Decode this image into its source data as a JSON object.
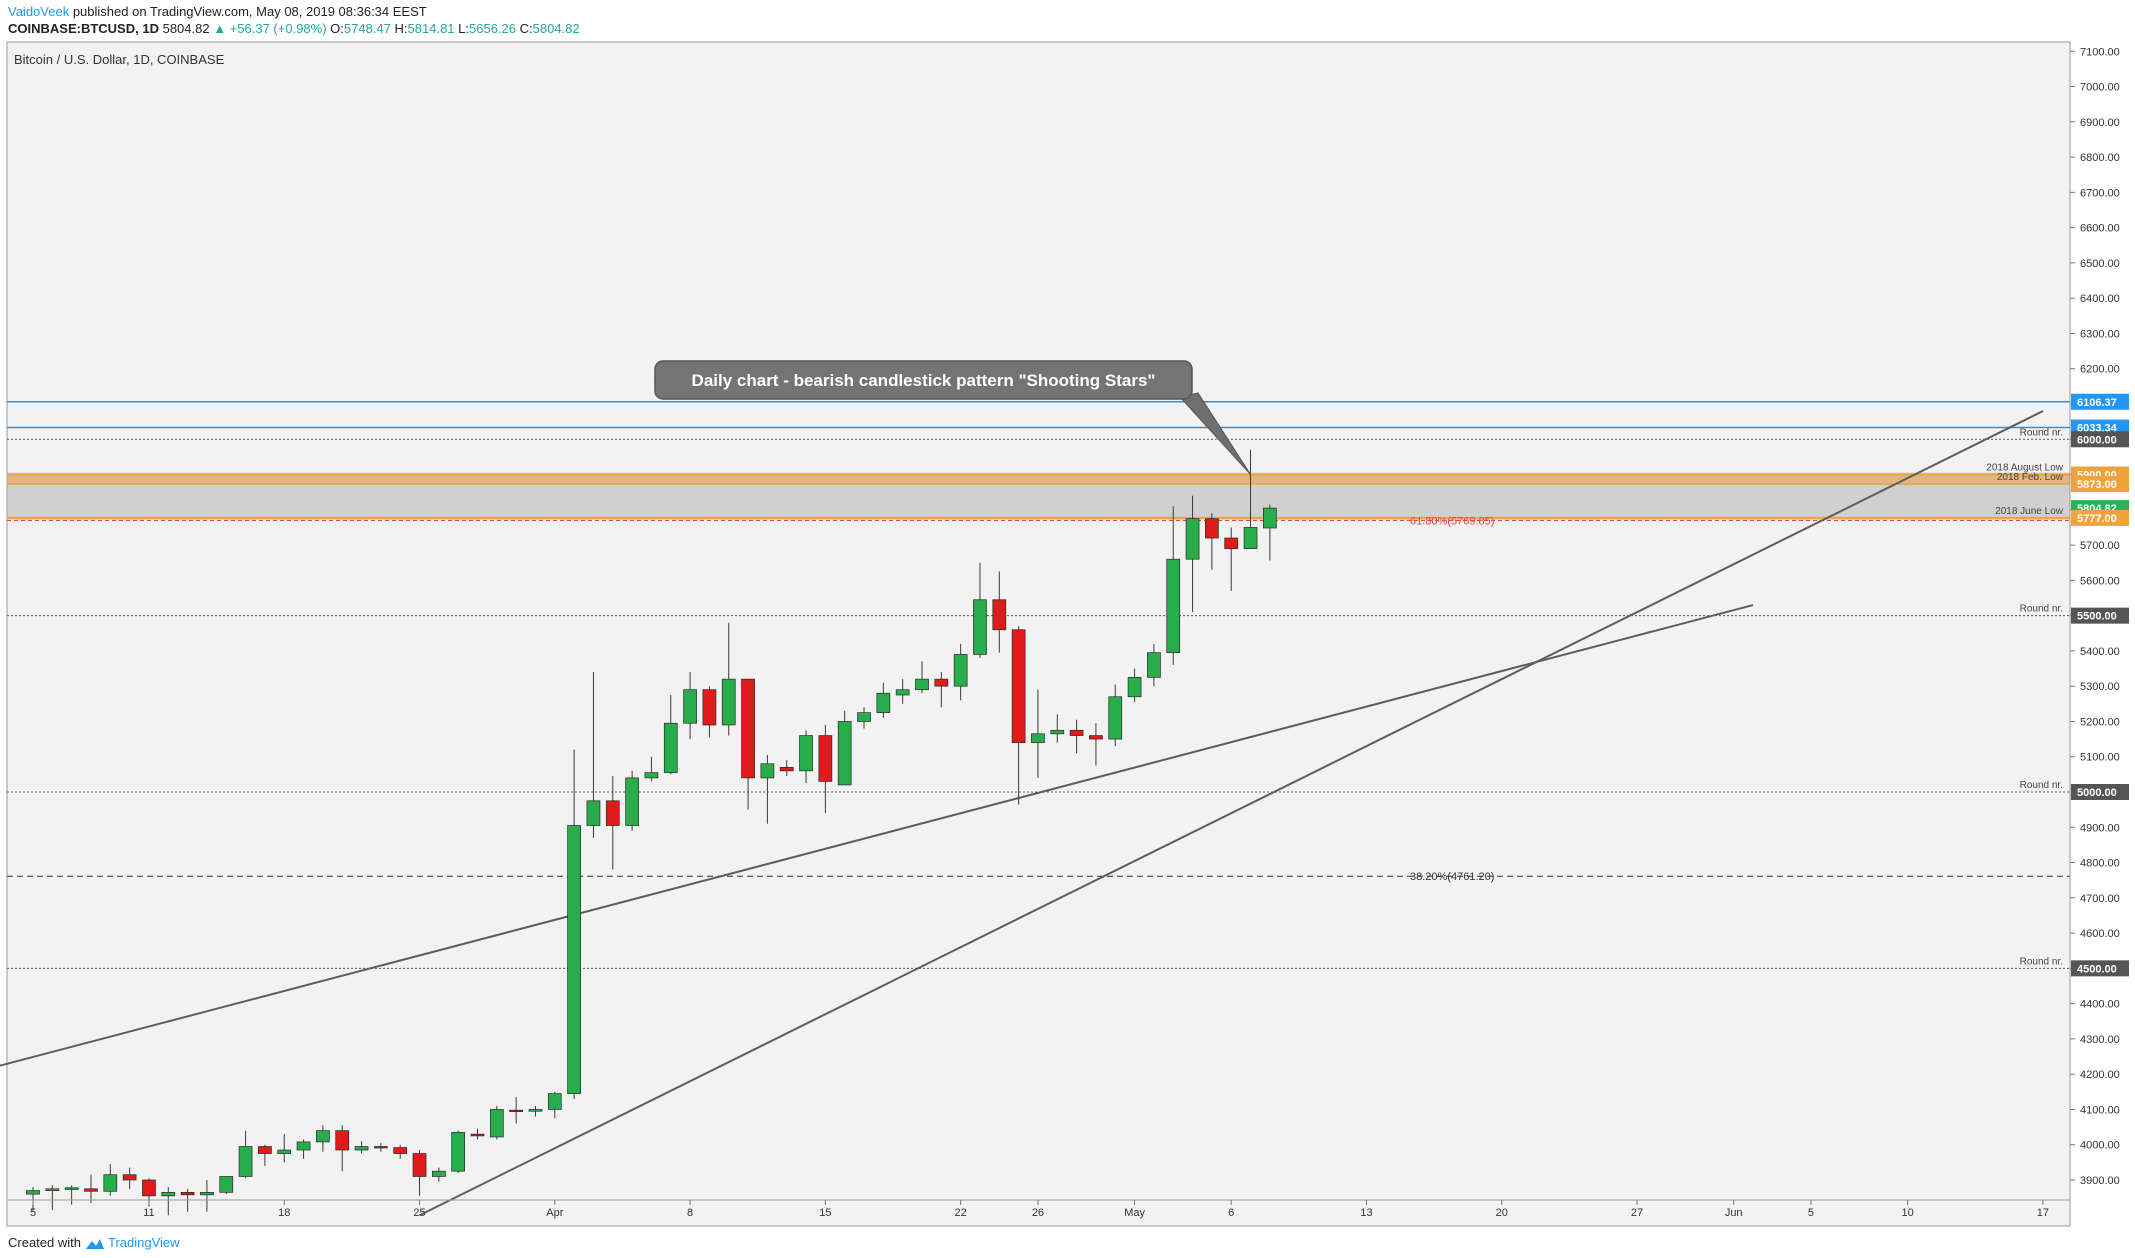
{
  "header": {
    "author": "VaidoVeek",
    "published_text": "published on TradingView.com, May 08, 2019 08:36:34 EEST",
    "symbol": "COINBASE:BTCUSD, 1D",
    "last": "5804.82",
    "change": "▲ +56.37 (+0.98%)",
    "o_label": "O:",
    "o_value": "5748.47",
    "h_label": "H:",
    "h_value": "5814.81",
    "l_label": "L:",
    "l_value": "5656.26",
    "c_label": "C:",
    "c_value": "5804.82"
  },
  "footer": {
    "created_with": "Created with",
    "brand": "TradingView",
    "logo_icon": "tradingview-logo-icon"
  },
  "colors": {
    "up": "#27ad4a",
    "down": "#e01b1b",
    "level_blue": "#2196f3",
    "fib_red": "#e8463c",
    "zone_orange": "#f0a33c",
    "label_dark": "#555555",
    "price_green": "#26b35a"
  },
  "chart_data": {
    "type": "candlestick",
    "title": "Bitcoin / U.S. Dollar, 1D, COINBASE",
    "ylim": [
      3800,
      7100
    ],
    "y_ticks": [
      "3900.00",
      "4000.00",
      "4100.00",
      "4200.00",
      "4300.00",
      "4400.00",
      "4500.00",
      "4600.00",
      "4700.00",
      "4800.00",
      "4900.00",
      "5000.00",
      "5100.00",
      "5200.00",
      "5300.00",
      "5400.00",
      "5500.00",
      "5600.00",
      "5700.00",
      "5800.00",
      "5900.00",
      "6000.00",
      "6100.00",
      "6200.00",
      "6300.00",
      "6400.00",
      "6500.00",
      "6600.00",
      "6700.00",
      "6800.00",
      "6900.00",
      "7000.00",
      "7100.00"
    ],
    "x_ticks": [
      {
        "label": "5",
        "date": "2019-03-05"
      },
      {
        "label": "11",
        "date": "2019-03-11"
      },
      {
        "label": "18",
        "date": "2019-03-18"
      },
      {
        "label": "25",
        "date": "2019-03-25"
      },
      {
        "label": "Apr",
        "date": "2019-04-01"
      },
      {
        "label": "8",
        "date": "2019-04-08"
      },
      {
        "label": "15",
        "date": "2019-04-15"
      },
      {
        "label": "22",
        "date": "2019-04-22"
      },
      {
        "label": "26",
        "date": "2019-04-26"
      },
      {
        "label": "May",
        "date": "2019-05-01"
      },
      {
        "label": "6",
        "date": "2019-05-06"
      },
      {
        "label": "13",
        "date": "2019-05-13"
      },
      {
        "label": "20",
        "date": "2019-05-20"
      },
      {
        "label": "27",
        "date": "2019-05-27"
      },
      {
        "label": "Jun",
        "date": "2019-06-01"
      },
      {
        "label": "5",
        "date": "2019-06-05"
      },
      {
        "label": "10",
        "date": "2019-06-10"
      },
      {
        "label": "17",
        "date": "2019-06-17"
      }
    ],
    "candles": [
      {
        "date": "2019-03-05",
        "o": 3860,
        "h": 3880,
        "l": 3810,
        "c": 3870
      },
      {
        "date": "2019-03-06",
        "o": 3870,
        "h": 3885,
        "l": 3815,
        "c": 3875
      },
      {
        "date": "2019-03-07",
        "o": 3873,
        "h": 3885,
        "l": 3830,
        "c": 3878
      },
      {
        "date": "2019-03-08",
        "o": 3875,
        "h": 3915,
        "l": 3835,
        "c": 3868
      },
      {
        "date": "2019-03-09",
        "o": 3868,
        "h": 3945,
        "l": 3855,
        "c": 3915
      },
      {
        "date": "2019-03-10",
        "o": 3915,
        "h": 3935,
        "l": 3875,
        "c": 3900
      },
      {
        "date": "2019-03-11",
        "o": 3900,
        "h": 3905,
        "l": 3825,
        "c": 3855
      },
      {
        "date": "2019-03-12",
        "o": 3855,
        "h": 3880,
        "l": 3800,
        "c": 3865
      },
      {
        "date": "2019-03-13",
        "o": 3865,
        "h": 3875,
        "l": 3810,
        "c": 3858
      },
      {
        "date": "2019-03-14",
        "o": 3858,
        "h": 3900,
        "l": 3810,
        "c": 3865
      },
      {
        "date": "2019-03-15",
        "o": 3865,
        "h": 3910,
        "l": 3860,
        "c": 3910
      },
      {
        "date": "2019-03-16",
        "o": 3910,
        "h": 4040,
        "l": 3905,
        "c": 3995
      },
      {
        "date": "2019-03-17",
        "o": 3995,
        "h": 4000,
        "l": 3940,
        "c": 3975
      },
      {
        "date": "2019-03-18",
        "o": 3975,
        "h": 4030,
        "l": 3950,
        "c": 3985
      },
      {
        "date": "2019-03-19",
        "o": 3985,
        "h": 4015,
        "l": 3960,
        "c": 4008
      },
      {
        "date": "2019-03-20",
        "o": 4008,
        "h": 4055,
        "l": 3980,
        "c": 4040
      },
      {
        "date": "2019-03-21",
        "o": 4040,
        "h": 4055,
        "l": 3925,
        "c": 3985
      },
      {
        "date": "2019-03-22",
        "o": 3985,
        "h": 4010,
        "l": 3975,
        "c": 3995
      },
      {
        "date": "2019-03-23",
        "o": 3995,
        "h": 4005,
        "l": 3980,
        "c": 3992
      },
      {
        "date": "2019-03-24",
        "o": 3992,
        "h": 4000,
        "l": 3960,
        "c": 3975
      },
      {
        "date": "2019-03-25",
        "o": 3975,
        "h": 3985,
        "l": 3855,
        "c": 3910
      },
      {
        "date": "2019-03-26",
        "o": 3910,
        "h": 3935,
        "l": 3895,
        "c": 3925
      },
      {
        "date": "2019-03-27",
        "o": 3925,
        "h": 4040,
        "l": 3920,
        "c": 4035
      },
      {
        "date": "2019-03-28",
        "o": 4030,
        "h": 4045,
        "l": 4015,
        "c": 4025
      },
      {
        "date": "2019-03-29",
        "o": 4022,
        "h": 4110,
        "l": 4015,
        "c": 4100
      },
      {
        "date": "2019-03-30",
        "o": 4098,
        "h": 4135,
        "l": 4060,
        "c": 4095
      },
      {
        "date": "2019-03-31",
        "o": 4095,
        "h": 4110,
        "l": 4080,
        "c": 4100
      },
      {
        "date": "2019-04-01",
        "o": 4100,
        "h": 4150,
        "l": 4075,
        "c": 4145
      },
      {
        "date": "2019-04-02",
        "o": 4145,
        "h": 5120,
        "l": 4130,
        "c": 4905
      },
      {
        "date": "2019-04-03",
        "o": 4905,
        "h": 5340,
        "l": 4870,
        "c": 4975
      },
      {
        "date": "2019-04-04",
        "o": 4975,
        "h": 5045,
        "l": 4780,
        "c": 4905
      },
      {
        "date": "2019-04-05",
        "o": 4905,
        "h": 5060,
        "l": 4890,
        "c": 5040
      },
      {
        "date": "2019-04-06",
        "o": 5040,
        "h": 5100,
        "l": 5030,
        "c": 5055
      },
      {
        "date": "2019-04-07",
        "o": 5055,
        "h": 5275,
        "l": 5050,
        "c": 5195
      },
      {
        "date": "2019-04-08",
        "o": 5195,
        "h": 5340,
        "l": 5150,
        "c": 5290
      },
      {
        "date": "2019-04-09",
        "o": 5290,
        "h": 5300,
        "l": 5155,
        "c": 5190
      },
      {
        "date": "2019-04-10",
        "o": 5190,
        "h": 5480,
        "l": 5160,
        "c": 5320
      },
      {
        "date": "2019-04-11",
        "o": 5320,
        "h": 5320,
        "l": 4950,
        "c": 5040
      },
      {
        "date": "2019-04-12",
        "o": 5040,
        "h": 5105,
        "l": 4910,
        "c": 5080
      },
      {
        "date": "2019-04-13",
        "o": 5070,
        "h": 5090,
        "l": 5045,
        "c": 5060
      },
      {
        "date": "2019-04-14",
        "o": 5060,
        "h": 5175,
        "l": 5025,
        "c": 5160
      },
      {
        "date": "2019-04-15",
        "o": 5160,
        "h": 5190,
        "l": 4940,
        "c": 5030
      },
      {
        "date": "2019-04-16",
        "o": 5020,
        "h": 5230,
        "l": 5020,
        "c": 5200
      },
      {
        "date": "2019-04-17",
        "o": 5200,
        "h": 5240,
        "l": 5180,
        "c": 5225
      },
      {
        "date": "2019-04-18",
        "o": 5225,
        "h": 5310,
        "l": 5210,
        "c": 5280
      },
      {
        "date": "2019-04-19",
        "o": 5275,
        "h": 5320,
        "l": 5250,
        "c": 5290
      },
      {
        "date": "2019-04-20",
        "o": 5290,
        "h": 5370,
        "l": 5280,
        "c": 5320
      },
      {
        "date": "2019-04-21",
        "o": 5320,
        "h": 5340,
        "l": 5240,
        "c": 5300
      },
      {
        "date": "2019-04-22",
        "o": 5300,
        "h": 5420,
        "l": 5260,
        "c": 5390
      },
      {
        "date": "2019-04-23",
        "o": 5390,
        "h": 5650,
        "l": 5380,
        "c": 5545
      },
      {
        "date": "2019-04-24",
        "o": 5545,
        "h": 5625,
        "l": 5395,
        "c": 5460
      },
      {
        "date": "2019-04-25",
        "o": 5460,
        "h": 5470,
        "l": 4965,
        "c": 5140
      },
      {
        "date": "2019-04-26",
        "o": 5140,
        "h": 5290,
        "l": 5040,
        "c": 5165
      },
      {
        "date": "2019-04-27",
        "o": 5165,
        "h": 5220,
        "l": 5140,
        "c": 5175
      },
      {
        "date": "2019-04-28",
        "o": 5175,
        "h": 5205,
        "l": 5110,
        "c": 5160
      },
      {
        "date": "2019-04-29",
        "o": 5160,
        "h": 5195,
        "l": 5075,
        "c": 5150
      },
      {
        "date": "2019-04-30",
        "o": 5150,
        "h": 5305,
        "l": 5130,
        "c": 5270
      },
      {
        "date": "2019-05-01",
        "o": 5270,
        "h": 5350,
        "l": 5255,
        "c": 5325
      },
      {
        "date": "2019-05-02",
        "o": 5325,
        "h": 5420,
        "l": 5300,
        "c": 5395
      },
      {
        "date": "2019-05-03",
        "o": 5395,
        "h": 5810,
        "l": 5360,
        "c": 5660
      },
      {
        "date": "2019-05-04",
        "o": 5660,
        "h": 5840,
        "l": 5510,
        "c": 5775
      },
      {
        "date": "2019-05-05",
        "o": 5775,
        "h": 5790,
        "l": 5630,
        "c": 5720
      },
      {
        "date": "2019-05-06",
        "o": 5720,
        "h": 5750,
        "l": 5570,
        "c": 5690
      },
      {
        "date": "2019-05-07",
        "o": 5690,
        "h": 5970,
        "l": 5690,
        "c": 5750
      },
      {
        "date": "2019-05-08",
        "o": 5748.47,
        "h": 5814.81,
        "l": 5656.26,
        "c": 5804.82
      }
    ],
    "levels": [
      {
        "price": 6106.37,
        "label": "6106.37",
        "kind": "blue"
      },
      {
        "price": 6033.34,
        "label": "6033.34",
        "kind": "blue"
      },
      {
        "price": 6000,
        "label": "6000.00",
        "kind": "round",
        "note": "Round nr."
      },
      {
        "price": 5900,
        "label": "5900.00",
        "kind": "zone",
        "note": "2018 August Low"
      },
      {
        "price": 5873,
        "label": "5873.00",
        "kind": "zone",
        "note": "2018 Feb. Low"
      },
      {
        "price": 5777,
        "label": "5777.00",
        "kind": "zone",
        "note": "2018 June Low"
      },
      {
        "price": 5500,
        "label": "5500.00",
        "kind": "round",
        "note": "Round nr."
      },
      {
        "price": 5000,
        "label": "5000.00",
        "kind": "round",
        "note": "Round nr."
      },
      {
        "price": 4500,
        "label": "4500.00",
        "kind": "round",
        "note": "Round nr."
      }
    ],
    "fib_levels": [
      {
        "price": 5769.85,
        "label": "61.80%(5769.85)"
      },
      {
        "price": 4761.2,
        "label": "38.20%(4761.20)"
      }
    ],
    "last_price": {
      "price": 5804.82,
      "label": "5804.82"
    },
    "trendlines": [
      {
        "from": {
          "date": "2019-03-03",
          "price": 4220
        },
        "to": {
          "date": "2019-06-02",
          "price": 5530
        }
      },
      {
        "from": {
          "date": "2019-03-25",
          "price": 3800
        },
        "to": {
          "date": "2019-06-17",
          "price": 6080
        }
      }
    ],
    "annotation": {
      "text": "Daily chart - bearish candlestick pattern \"Shooting Stars\"",
      "points_to": {
        "date": "2019-05-07",
        "price": 5900
      }
    },
    "grid": false
  }
}
